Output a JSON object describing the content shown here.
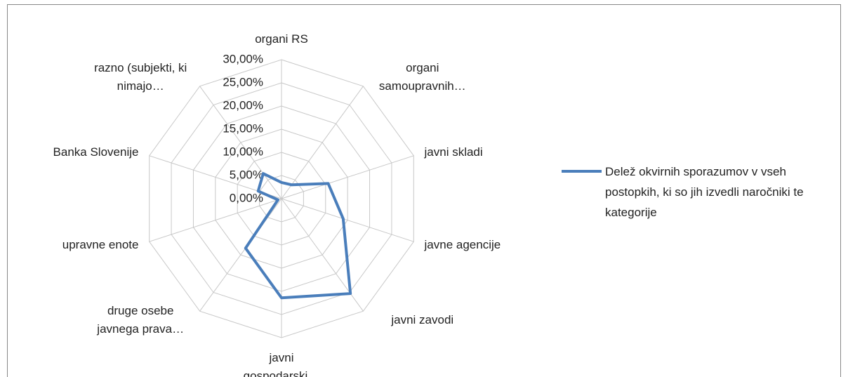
{
  "chart_data": {
    "type": "radar",
    "categories": [
      "organi RS",
      "organi samoupravnih…",
      "javni skladi",
      "javne agencije",
      "javni zavodi",
      "javni gospodarski…",
      "druge osebe javnega prava…",
      "upravne enote",
      "Banka Slovenije",
      "razno (subjekti, ki nimajo…"
    ],
    "series": [
      {
        "name": "Delež okvirnih sporazumov v vseh postopkih, ki so jih izvedli naročniki te kategorije",
        "color": "#4a7ebb",
        "values": [
          3.5,
          3.7,
          10.6,
          14,
          25.3,
          21.4,
          13.2,
          0.8,
          5.3,
          6.7
        ]
      }
    ],
    "ylim": [
      0,
      30
    ],
    "yticks": [
      {
        "value": 0,
        "label": "0,00%"
      },
      {
        "value": 5,
        "label": "5,00%"
      },
      {
        "value": 10,
        "label": "10,00%"
      },
      {
        "value": 15,
        "label": "15,00%"
      },
      {
        "value": 20,
        "label": "20,00%"
      },
      {
        "value": 25,
        "label": "25,00%"
      },
      {
        "value": 30,
        "label": "30,00%"
      }
    ],
    "grid": true,
    "legend": "right"
  }
}
